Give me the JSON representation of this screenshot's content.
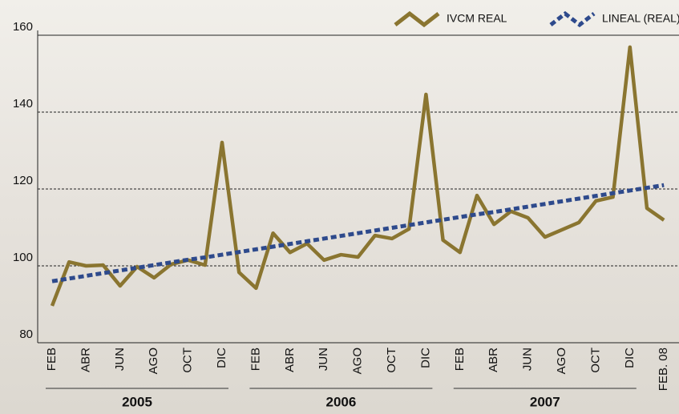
{
  "chart_data": {
    "type": "line",
    "categories": [
      "FEB",
      null,
      "ABR",
      null,
      "JUN",
      null,
      "AGO",
      null,
      "OCT",
      null,
      "DIC",
      null,
      "FEB",
      null,
      "ABR",
      null,
      "JUN",
      null,
      "AGO",
      null,
      "OCT",
      null,
      "DIC",
      null,
      "FEB",
      null,
      "ABR",
      null,
      "JUN",
      null,
      "AGO",
      null,
      "OCT",
      null,
      "DIC",
      null,
      "FEB. 08"
    ],
    "groups": [
      {
        "label": "2005",
        "start": 0,
        "end": 10
      },
      {
        "label": "2006",
        "start": 12,
        "end": 22
      },
      {
        "label": "2007",
        "start": 24,
        "end": 34
      }
    ],
    "series": [
      {
        "name": "IVCM REAL",
        "color": "#8a7530",
        "style": "solid",
        "values": [
          89.6,
          101,
          100,
          100.2,
          94.8,
          99.8,
          96.9,
          100.4,
          101.5,
          100.2,
          132.1,
          98.3,
          94.2,
          108.5,
          103.5,
          105.8,
          101.5,
          102.9,
          102.3,
          107.9,
          107.1,
          109.6,
          144.6,
          106.7,
          103.5,
          118.3,
          110.8,
          114.2,
          112.5,
          107.5,
          109.4,
          111.3,
          116.9,
          117.9,
          156.9,
          115,
          111.9
        ]
      },
      {
        "name": "LINEAL (REAL)",
        "color": "#2e4a8c",
        "style": "dotted",
        "values": [
          96.0,
          96.7,
          97.4,
          98.1,
          98.8,
          99.5,
          100.2,
          100.9,
          101.6,
          102.2,
          102.9,
          103.6,
          104.3,
          105.0,
          105.7,
          106.4,
          107.1,
          107.8,
          108.5,
          109.2,
          109.9,
          110.6,
          111.3,
          112.0,
          112.7,
          113.4,
          114.0,
          114.7,
          115.4,
          116.1,
          116.8,
          117.5,
          118.2,
          118.9,
          119.6,
          120.3,
          121.0
        ]
      }
    ],
    "ylim": [
      80,
      160
    ],
    "yticks": [
      80,
      100,
      120,
      140,
      160
    ],
    "grid": true,
    "legend": "top-right"
  }
}
